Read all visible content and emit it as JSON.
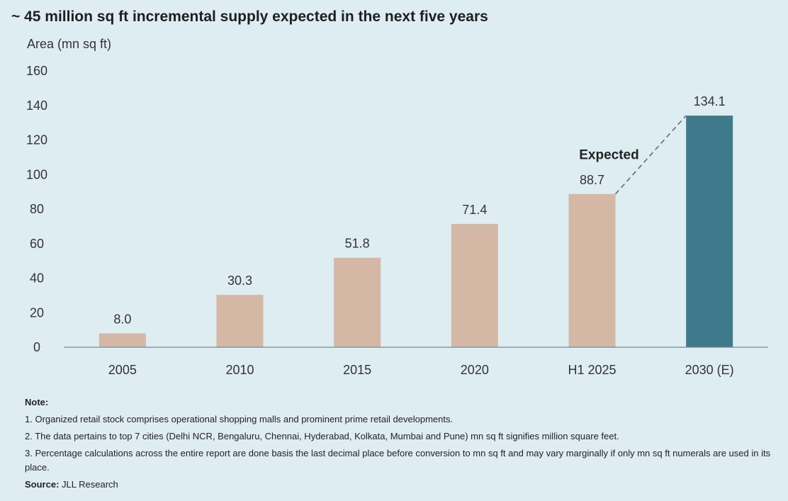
{
  "title": "~ 45 million sq ft incremental supply expected in the next five years",
  "chart_data": {
    "type": "bar",
    "ylabel": "Area (mn sq ft)",
    "xlabel": "",
    "ylim": [
      0,
      160
    ],
    "yticks": [
      "0",
      "20",
      "40",
      "60",
      "80",
      "100",
      "120",
      "140",
      "160"
    ],
    "grid": false,
    "categories": [
      "2005",
      "2010",
      "2015",
      "2020",
      "H1 2025",
      "2030 (E)"
    ],
    "values": [
      8.0,
      30.3,
      51.8,
      71.4,
      88.7,
      134.1
    ],
    "value_labels": [
      "8.0",
      "30.3",
      "51.8",
      "71.4",
      "88.7",
      "134.1"
    ],
    "colors": {
      "actual": "#d4b8a5",
      "expected": "#3f7a8c"
    },
    "annotation": "Expected"
  },
  "notes": {
    "heading": "Note:",
    "items": [
      "1. Organized retail stock comprises operational shopping malls and prominent prime retail developments.",
      "2. The data pertains to top 7 cities (Delhi NCR, Bengaluru, Chennai, Hyderabad, Kolkata, Mumbai and Pune) mn sq ft signifies million square feet.",
      "3. Percentage calculations across the entire report are done basis the last decimal place before conversion to mn sq ft and may vary marginally if only mn sq ft numerals are used in its place."
    ],
    "source_label": "Source:",
    "source_text": "JLL Research"
  }
}
